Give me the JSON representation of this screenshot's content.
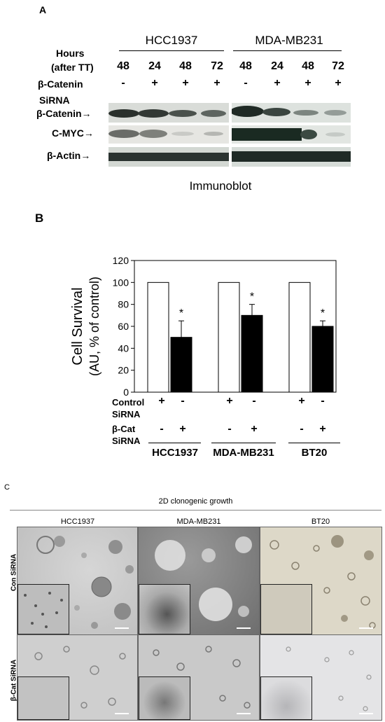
{
  "panelA": {
    "letter": "A",
    "group1": "HCC1937",
    "group2": "MDA-MB231",
    "hours_label": "Hours",
    "after_label": "(after TT)",
    "hours": [
      "48",
      "24",
      "48",
      "72",
      "48",
      "24",
      "48",
      "72"
    ],
    "catenin_row_label": "β-Catenin",
    "catenin_signs": [
      "-",
      "+",
      "+",
      "+",
      "-",
      "+",
      "+",
      "+"
    ],
    "sirna_label": "SiRNA",
    "bands": [
      {
        "label": "β-Catenin"
      },
      {
        "label": "C-MYC"
      },
      {
        "label": "β-Actin"
      }
    ],
    "caption": "Immunoblot"
  },
  "panelB": {
    "letter": "B",
    "signs": {
      "control": [
        "+",
        "-",
        "+",
        "-",
        "+",
        "-"
      ],
      "bcat": [
        "-",
        "+",
        "-",
        "+",
        "-",
        "+"
      ]
    },
    "row_labels": {
      "control1": "Control",
      "control2": "SiRNA",
      "bcat1": "β-Cat",
      "bcat2": "SiRNA"
    },
    "groups": [
      "HCC1937",
      "MDA-MB231",
      "BT20"
    ]
  },
  "chart_data": {
    "type": "bar",
    "ylabel_line1": "Cell Survival",
    "ylabel_line2": "(AU, % of control)",
    "ylim": [
      0,
      120
    ],
    "yticks": [
      0,
      20,
      40,
      60,
      80,
      100,
      120
    ],
    "categories": [
      "HCC1937",
      "MDA-MB231",
      "BT20"
    ],
    "series": [
      {
        "values": [
          100,
          100,
          100
        ],
        "errors": [
          0,
          0,
          0
        ],
        "color": "#ffffff"
      },
      {
        "values": [
          50,
          70,
          60
        ],
        "errors": [
          15,
          10,
          5
        ],
        "color": "#000000"
      }
    ],
    "annotations": [
      "*",
      "*",
      "*"
    ],
    "grid": false
  },
  "panelC": {
    "letter": "C",
    "title": "2D clonogenic growth",
    "columns": [
      "HCC1937",
      "MDA-MB231",
      "BT20"
    ],
    "rows": [
      "Con SiRNA",
      "β-Cat SiRNA"
    ]
  }
}
